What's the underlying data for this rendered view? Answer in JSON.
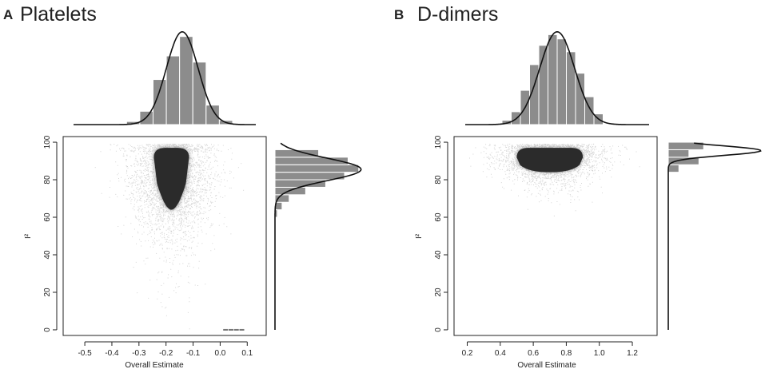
{
  "chart_data": [
    {
      "panel_letter": "A",
      "title": "Platelets",
      "type": "scatter",
      "xlabel": "Overall Estimate",
      "ylabel": "I²",
      "xlim": [
        -0.58,
        0.17
      ],
      "ylim": [
        -3,
        103
      ],
      "xticks": [
        -0.5,
        -0.4,
        -0.3,
        -0.2,
        -0.1,
        0.0,
        0.1
      ],
      "xtick_labels": [
        "-0.5",
        "-0.4",
        "-0.3",
        "-0.2",
        "-0.1",
        "0.0",
        "0.1"
      ],
      "yticks": [
        0,
        20,
        40,
        60,
        80,
        100
      ],
      "ytick_labels": [
        "0",
        "20",
        "40",
        "60",
        "80",
        "100"
      ],
      "scatter_cloud": {
        "x_center": -0.18,
        "y_center": 82,
        "x_sd": 0.05,
        "y_sd": 8,
        "core_x_halfwidth": 0.065,
        "core_y_range": [
          64,
          97
        ],
        "extra_points": [
          [
            0.04,
            0
          ],
          [
            0.06,
            0
          ],
          [
            0.02,
            0
          ],
          [
            0.08,
            0
          ]
        ]
      },
      "top_histogram": {
        "bin_edges": [
          -0.34,
          -0.3,
          -0.26,
          -0.22,
          -0.18,
          -0.14,
          -0.1,
          -0.06,
          -0.02
        ],
        "densities": [
          0.3,
          1.3,
          4.4,
          6.7,
          8.6,
          6.1,
          1.9,
          0.4
        ],
        "curve_mean": -0.172,
        "curve_sd": 0.048,
        "ymax": 9.2,
        "xlim": [
          -0.5,
          0.05
        ]
      },
      "right_histogram": {
        "bin_edges": [
          60,
          64,
          68,
          72,
          76,
          80,
          84,
          88,
          92,
          96
        ],
        "densities": [
          0.002,
          0.006,
          0.012,
          0.026,
          0.043,
          0.059,
          0.071,
          0.062,
          0.037
        ],
        "curve_mean": 85.5,
        "curve_sd": 6.0,
        "curve_max": 0.073,
        "xmax": 0.08
      }
    },
    {
      "panel_letter": "B",
      "title": "D-dimers",
      "type": "scatter",
      "xlabel": "Overall Estimate",
      "ylabel": "I²",
      "xlim": [
        0.12,
        1.35
      ],
      "ylim": [
        -3,
        103
      ],
      "xticks": [
        0.2,
        0.4,
        0.6,
        0.8,
        1.0,
        1.2
      ],
      "xtick_labels": [
        "0.2",
        "0.4",
        "0.6",
        "0.8",
        "1.0",
        "1.2"
      ],
      "yticks": [
        0,
        20,
        40,
        60,
        80,
        100
      ],
      "ytick_labels": [
        "0",
        "20",
        "40",
        "60",
        "80",
        "100"
      ],
      "scatter_cloud": {
        "x_center": 0.7,
        "y_center": 92,
        "x_sd": 0.1,
        "y_sd": 3,
        "core_x_halfwidth": 0.2,
        "core_y_range": [
          84,
          97
        ],
        "extra_points": []
      },
      "top_histogram": {
        "bin_edges": [
          0.4,
          0.45,
          0.5,
          0.55,
          0.6,
          0.65,
          0.7,
          0.75,
          0.8,
          0.85,
          0.9,
          0.95
        ],
        "densities": [
          0.2,
          0.6,
          1.6,
          2.8,
          3.7,
          4.2,
          4.0,
          3.4,
          2.4,
          1.3,
          0.5
        ],
        "curve_mean": 0.7,
        "curve_sd": 0.095,
        "ymax": 4.4,
        "xlim": [
          0.2,
          1.2
        ]
      },
      "right_histogram": {
        "bin_edges": [
          84,
          88,
          92,
          96,
          100
        ],
        "densities": [
          0.018,
          0.052,
          0.035,
          0.06
        ],
        "curve_mean": 95.5,
        "curve_sd": 2.5,
        "curve_max": 0.157,
        "xmax": 0.16
      }
    }
  ]
}
